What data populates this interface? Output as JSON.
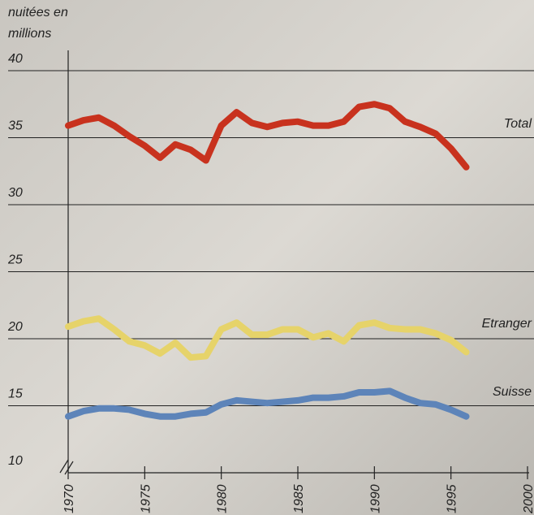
{
  "chart_data": {
    "type": "line",
    "y_label": [
      "nuitées en",
      "millions"
    ],
    "x": [
      1970,
      1971,
      1972,
      1973,
      1974,
      1975,
      1976,
      1977,
      1978,
      1979,
      1980,
      1981,
      1982,
      1983,
      1984,
      1985,
      1986,
      1987,
      1988,
      1989,
      1990,
      1991,
      1992,
      1993,
      1994,
      1995,
      1996
    ],
    "series": [
      {
        "name": "Total",
        "color": "#c8321e",
        "values": [
          35.9,
          36.3,
          36.5,
          35.9,
          35.1,
          34.4,
          33.5,
          34.5,
          34.1,
          33.3,
          35.9,
          36.9,
          36.1,
          35.8,
          36.1,
          36.2,
          35.9,
          35.9,
          36.2,
          37.3,
          37.5,
          37.2,
          36.2,
          35.8,
          35.3,
          34.2,
          32.8
        ]
      },
      {
        "name": "Etranger",
        "color": "#e6d36a",
        "values": [
          20.9,
          21.3,
          21.5,
          20.7,
          19.8,
          19.5,
          18.9,
          19.7,
          18.6,
          18.7,
          20.7,
          21.2,
          20.3,
          20.3,
          20.7,
          20.7,
          20.1,
          20.4,
          19.8,
          21.0,
          21.2,
          20.8,
          20.7,
          20.7,
          20.4,
          19.9,
          19.0
        ]
      },
      {
        "name": "Suisse",
        "color": "#5d84b9",
        "values": [
          14.2,
          14.6,
          14.8,
          14.8,
          14.7,
          14.4,
          14.2,
          14.2,
          14.4,
          14.5,
          15.1,
          15.4,
          15.3,
          15.2,
          15.3,
          15.4,
          15.6,
          15.6,
          15.7,
          16.0,
          16.0,
          16.1,
          15.6,
          15.2,
          15.1,
          14.7,
          14.2
        ]
      }
    ],
    "xlim": [
      1970,
      2000
    ],
    "xticks": [
      1970,
      1975,
      1980,
      1985,
      1990,
      1995,
      2000
    ],
    "ylim": [
      10,
      40
    ],
    "yticks": [
      10,
      15,
      20,
      25,
      30,
      35,
      40
    ],
    "grid": true
  }
}
